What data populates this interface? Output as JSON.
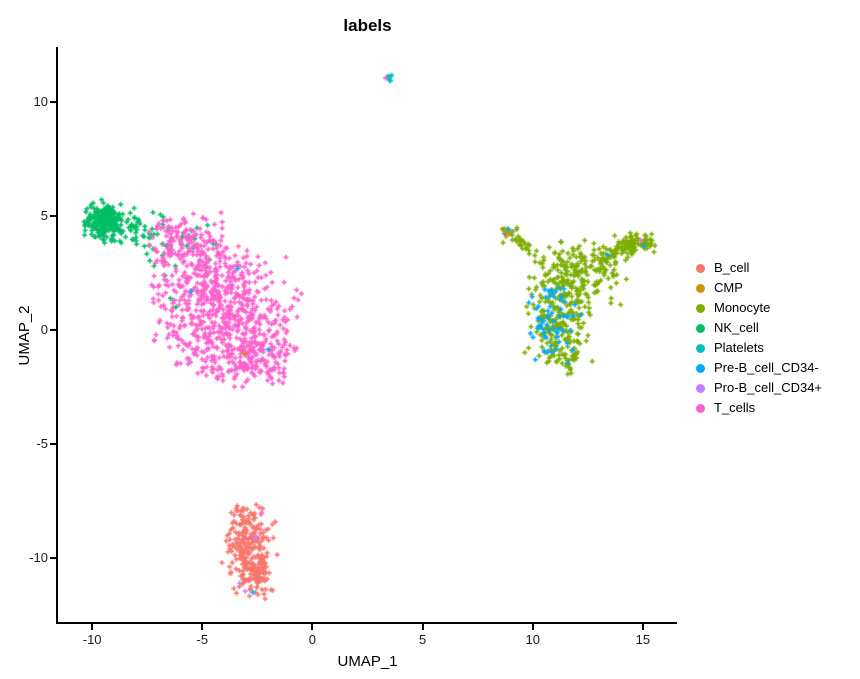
{
  "chart_data": {
    "type": "scatter",
    "title": "labels",
    "xlabel": "UMAP_1",
    "ylabel": "UMAP_2",
    "xlim": [
      -11.55,
      16.55
    ],
    "ylim": [
      -12.8,
      12.42
    ],
    "xticks": [
      -10,
      -5,
      0,
      5,
      10,
      15
    ],
    "yticks": [
      -10,
      -5,
      0,
      5,
      10
    ],
    "grid": false,
    "legend_position": "right",
    "marker": "plus",
    "background": "#ffffff",
    "axis_color": "#000000",
    "series": [
      {
        "name": "B_cell",
        "color": "#F8766D",
        "description": "dense vertical blob bottom-center, x -4..-1.6, y -11.9..-7.6",
        "blobs": [
          {
            "cx": -2.85,
            "cy": -9.4,
            "sx": 0.52,
            "sy": 0.75,
            "n": 165,
            "clip": [
              -4.15,
              -1.55,
              -11.0,
              -7.8
            ]
          },
          {
            "cx": -2.75,
            "cy": -10.7,
            "sx": 0.45,
            "sy": 0.55,
            "n": 105,
            "clip": [
              -3.9,
              -1.7,
              -11.9,
              -9.5
            ]
          },
          {
            "cx": -3.05,
            "cy": -8.1,
            "sx": 0.3,
            "sy": 0.3,
            "n": 22
          }
        ],
        "points": [
          [
            -2.55,
            -7.65
          ],
          [
            -2.4,
            -7.78
          ]
        ]
      },
      {
        "name": "CMP",
        "color": "#CD9600",
        "description": "few points at tip of monocyte left arm plus one in T cluster",
        "blobs": [],
        "points": [
          [
            8.8,
            4.1
          ],
          [
            8.9,
            4.25
          ],
          [
            9.05,
            4.3
          ],
          [
            8.75,
            4.35
          ],
          [
            -3.1,
            -1.0
          ]
        ]
      },
      {
        "name": "Monocyte",
        "color": "#7CAE00",
        "description": "V-shaped cluster right side, body x 9.7..13 y -1.7..3, arms to (9,4.2) and (15.4,3.9)",
        "blobs": [
          {
            "cx": 11.2,
            "cy": 0.5,
            "sx": 0.7,
            "sy": 0.95,
            "n": 195,
            "clip": [
              9.6,
              12.9,
              -1.5,
              2.2
            ]
          },
          {
            "cx": 11.7,
            "cy": 2.2,
            "sx": 0.95,
            "sy": 0.6,
            "n": 115,
            "clip": [
              9.8,
              13.8,
              1.2,
              3.6
            ]
          },
          {
            "cx": 12.4,
            "cy": 3.1,
            "sx": 1.1,
            "sy": 0.45,
            "n": 65,
            "clip": [
              10.2,
              14.6,
              2.2,
              4.2
            ]
          },
          {
            "cx": 14.6,
            "cy": 3.85,
            "sx": 0.42,
            "sy": 0.22,
            "n": 55,
            "clip": [
              13.6,
              15.5,
              3.3,
              4.35
            ]
          },
          {
            "cx": 15.25,
            "cy": 3.75,
            "sx": 0.18,
            "sy": 0.15,
            "n": 12
          },
          {
            "cx": 8.95,
            "cy": 4.2,
            "sx": 0.2,
            "sy": 0.15,
            "n": 14
          },
          {
            "cx": 11.6,
            "cy": -1.35,
            "sx": 0.24,
            "sy": 0.3,
            "n": 22
          },
          {
            "cx": 13.0,
            "cy": 2.0,
            "sx": 0.7,
            "sy": 0.7,
            "n": 22,
            "clip": [
              11.8,
              14.6,
              0.8,
              3.4
            ]
          }
        ],
        "segments": [
          {
            "x1": 13.1,
            "y1": 3.2,
            "x2": 15.0,
            "y2": 3.8,
            "jx": 0.25,
            "jy": 0.15,
            "n": 45
          },
          {
            "x1": 10.6,
            "y1": 2.9,
            "x2": 9.1,
            "y2": 4.1,
            "jx": 0.18,
            "jy": 0.13,
            "n": 26
          }
        ],
        "points": []
      },
      {
        "name": "NK_cell",
        "color": "#00BE67",
        "description": "dense blob top-left near (-9.4,4.9) with scattered tail right into T cluster",
        "blobs": [
          {
            "cx": -9.45,
            "cy": 4.85,
            "sx": 0.42,
            "sy": 0.38,
            "n": 200,
            "clip": [
              -10.4,
              -8.55,
              3.8,
              5.75
            ]
          },
          {
            "cx": -8.4,
            "cy": 4.5,
            "sx": 0.55,
            "sy": 0.4,
            "n": 55
          },
          {
            "cx": -7.0,
            "cy": 4.1,
            "sx": 0.8,
            "sy": 0.45,
            "n": 30
          },
          {
            "cx": -5.3,
            "cy": 3.4,
            "sx": 1.0,
            "sy": 0.7,
            "n": 14
          }
        ],
        "points": [
          [
            -6.45,
            1.4
          ],
          [
            -6.2,
            1.0
          ]
        ]
      },
      {
        "name": "Platelets",
        "color": "#00BFC4",
        "description": "tiny isolated cluster at top around (3.5, 11.1)",
        "blobs": [
          {
            "cx": 3.5,
            "cy": 11.1,
            "sx": 0.11,
            "sy": 0.07,
            "n": 9
          }
        ],
        "points": []
      },
      {
        "name": "Pre-B_cell_CD34-",
        "color": "#00A9FF",
        "description": "blue points mixed into lower-left body of monocyte cluster, few strays elsewhere",
        "blobs": [
          {
            "cx": 10.8,
            "cy": 0.35,
            "sx": 0.55,
            "sy": 0.8,
            "n": 58,
            "clip": [
              9.7,
              12.2,
              -1.3,
              1.9
            ]
          },
          {
            "cx": 11.3,
            "cy": 1.8,
            "sx": 0.5,
            "sy": 0.35,
            "n": 7
          },
          {
            "cx": 9.0,
            "cy": 4.3,
            "sx": 0.13,
            "sy": 0.09,
            "n": 5
          }
        ],
        "points": [
          [
            -3.4,
            2.7
          ],
          [
            -5.5,
            1.7
          ],
          [
            -2.0,
            -0.85
          ],
          [
            -2.7,
            -11.5
          ],
          [
            15.05,
            3.7
          ],
          [
            13.4,
            3.3
          ],
          [
            11.6,
            -1.45
          ]
        ]
      },
      {
        "name": "Pro-B_cell_CD34+",
        "color": "#C77CFF",
        "description": "few violet points inside B_cell cluster",
        "blobs": [],
        "points": [
          [
            -2.55,
            -9.05
          ],
          [
            -3.3,
            -11.1
          ],
          [
            -3.05,
            -11.45
          ],
          [
            -2.6,
            -9.15
          ]
        ]
      },
      {
        "name": "T_cells",
        "color": "#FF61CC",
        "description": "large pink cluster center-left, x -7.8..0.2, y -2.5..5.3, dense core near (-3.3,0.5)",
        "blobs": [
          {
            "cx": -5.9,
            "cy": 3.9,
            "sx": 0.95,
            "sy": 0.55,
            "n": 120,
            "clip": [
              -7.9,
              -3.8,
              2.8,
              5.3
            ]
          },
          {
            "cx": -4.5,
            "cy": 2.3,
            "sx": 1.25,
            "sy": 0.85,
            "n": 200,
            "clip": [
              -7.6,
              -1.2,
              0.5,
              4.6
            ]
          },
          {
            "cx": -3.3,
            "cy": 0.5,
            "sx": 1.45,
            "sy": 1.0,
            "n": 310,
            "clip": [
              -7.3,
              -0.6,
              -1.8,
              3.0
            ]
          },
          {
            "cx": -3.1,
            "cy": -1.3,
            "sx": 1.25,
            "sy": 0.65,
            "n": 210,
            "clip": [
              -6.2,
              -1.1,
              -2.55,
              0.3
            ]
          },
          {
            "cx": -5.6,
            "cy": 0.8,
            "sx": 0.8,
            "sy": 1.3,
            "n": 90,
            "clip": [
              -7.4,
              -4.0,
              -1.5,
              3.5
            ]
          }
        ],
        "points": [
          [
            -0.5,
            1.6
          ],
          [
            -2.3,
            -8.0
          ],
          [
            3.32,
            11.05
          ],
          [
            14.9,
            3.95
          ],
          [
            -1.2,
            3.2
          ]
        ]
      }
    ]
  },
  "legend": {
    "items": [
      {
        "label": "B_cell",
        "color": "#F8766D"
      },
      {
        "label": "CMP",
        "color": "#CD9600"
      },
      {
        "label": "Monocyte",
        "color": "#7CAE00"
      },
      {
        "label": "NK_cell",
        "color": "#00BE67"
      },
      {
        "label": "Platelets",
        "color": "#00BFC4"
      },
      {
        "label": "Pre-B_cell_CD34-",
        "color": "#00A9FF"
      },
      {
        "label": "Pro-B_cell_CD34+",
        "color": "#C77CFF"
      },
      {
        "label": "T_cells",
        "color": "#FF61CC"
      }
    ]
  }
}
